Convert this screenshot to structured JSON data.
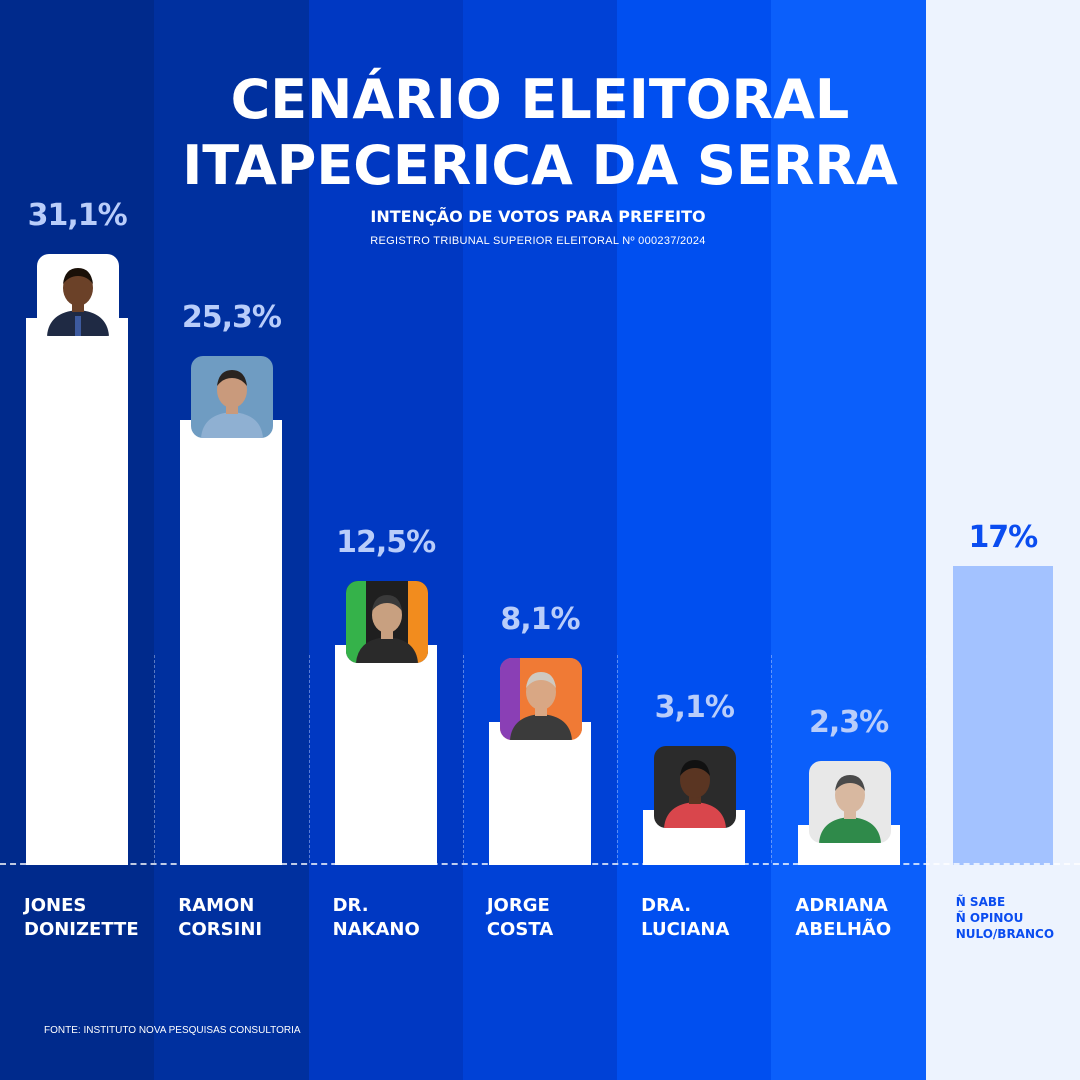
{
  "title_line1": "CENÁRIO ELEITORAL",
  "title_line2": "ITAPECERICA DA SERRA",
  "subtitle": "INTENÇÃO DE VOTOS PARA PREFEITO",
  "registry": "REGISTRO TRIBUNAL SUPERIOR ELEITORAL Nº 000237/2024",
  "source": "FONTE: INSTITUTO NOVA PESQUISAS CONSULTORIA",
  "colors": {
    "stripes": [
      "#002a8c",
      "#00309f",
      "#0038c2",
      "#0041d6",
      "#004ff0",
      "#0b5ffb",
      "#edf3fe"
    ],
    "bar": "#ffffff",
    "bar_other": "#a3c2ff",
    "pct_text": "#b9cdfa",
    "pct_other": "#0a4cf0"
  },
  "chart_data": {
    "type": "bar",
    "title": "INTENÇÃO DE VOTOS PARA PREFEITO",
    "xlabel": "",
    "ylabel": "",
    "unit": "%",
    "ylim": [
      0,
      34
    ],
    "categories": [
      "JONES DONIZETTE",
      "RAMON CORSINI",
      "DR. NAKANO",
      "JORGE COSTA",
      "DRA. LUCIANA",
      "ADRIANA ABELHÃO",
      "Ñ SABE Ñ OPINOU NULO/BRANCO"
    ],
    "values": [
      31.1,
      25.3,
      12.5,
      8.1,
      3.1,
      2.3,
      17
    ],
    "value_labels": [
      "31,1%",
      "25,3%",
      "12,5%",
      "8,1%",
      "3,1%",
      "2,3%",
      "17%"
    ],
    "name_labels": [
      "JONES\nDONIZETTE",
      "RAMON\nCORSINI",
      "DR.\nNAKANO",
      "JORGE\nCOSTA",
      "DRA.\nLUCIANA",
      "ADRIANA\nABELHÃO",
      "Ñ SABE\nÑ OPINOU\nNULO/BRANCO"
    ],
    "grid": false,
    "legend": "none"
  }
}
